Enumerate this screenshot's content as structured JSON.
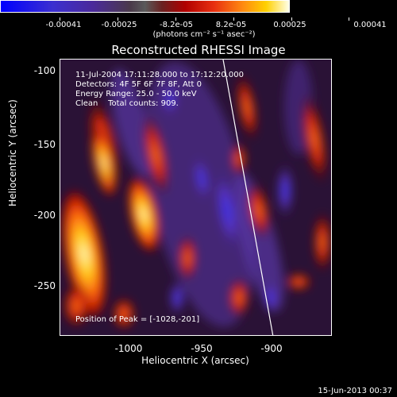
{
  "colorbar": {
    "ticks": [
      "-0.00041",
      "-0.00025",
      "-8.2e-05",
      "8.2e-05",
      "0.00025",
      "0.00041"
    ],
    "units": "(photons cm⁻² s⁻¹ asec⁻²)"
  },
  "title": "Reconstructed RHESSI Image",
  "info": {
    "time_range": "11-Jul-2004 17:11:28.000 to 17:12:20.000",
    "detectors": "Detectors: 4F 5F 6F 7F 8F, Att 0",
    "energy": "Energy Range: 25.0 - 50.0 keV",
    "clean": "Clean    Total counts: 909.",
    "peak": "Position of Peak = [-1028,-201]"
  },
  "axes": {
    "xlabel": "Heliocentric X (arcsec)",
    "ylabel": "Heliocentric Y (arcsec)",
    "xticks": [
      "-1000",
      "-950",
      "-900"
    ],
    "yticks": [
      "-100",
      "-150",
      "-200",
      "-250"
    ]
  },
  "footer": "15-Jun-2013 00:37"
}
